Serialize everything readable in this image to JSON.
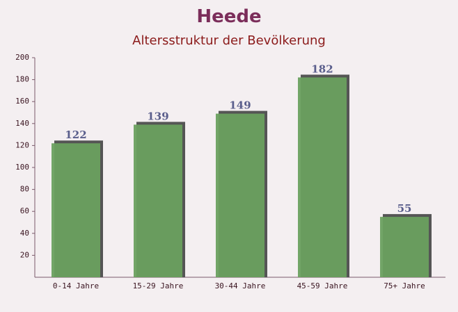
{
  "chart_data": {
    "type": "bar",
    "title": "Heede",
    "subtitle": "Altersstruktur der Bevölkerung",
    "categories": [
      "0-14 Jahre",
      "15-29 Jahre",
      "30-44 Jahre",
      "45-59 Jahre",
      "75+ Jahre"
    ],
    "values": [
      122,
      139,
      149,
      182,
      55
    ],
    "color": "#6aa05f",
    "ylim": [
      0,
      200
    ],
    "yticks": [
      20,
      40,
      60,
      80,
      100,
      120,
      140,
      160,
      180,
      200
    ]
  }
}
